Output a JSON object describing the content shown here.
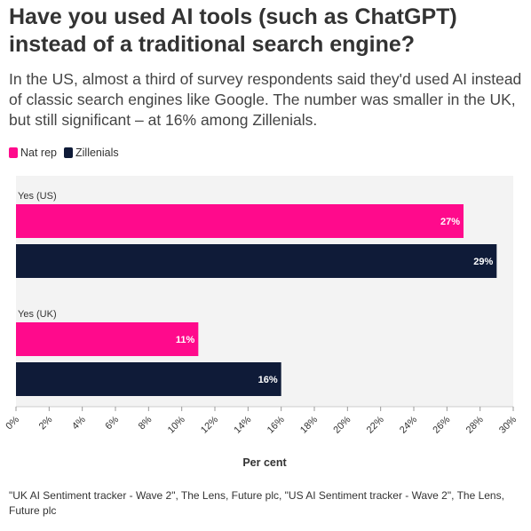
{
  "title": "Have you used AI tools (such as ChatGPT) instead of a traditional search engine?",
  "subtitle": "In the US, almost a third of survey respondents said they'd used AI instead of classic search engines like Google. The number was smaller in the UK, but still significant – at 16% among Zillenials.",
  "legend": [
    {
      "name": "Nat rep",
      "color": "#ff0a8c"
    },
    {
      "name": "Zillenials",
      "color": "#0f1b38"
    }
  ],
  "source": "\"UK AI Sentiment tracker - Wave 2\", The Lens, Future plc, \"US AI Sentiment tracker - Wave 2\", The Lens, Future plc",
  "chart_data": {
    "type": "bar",
    "orientation": "horizontal",
    "categories": [
      "Yes (US)",
      "Yes (UK)"
    ],
    "series": [
      {
        "name": "Nat rep",
        "color": "#ff0a8c",
        "values": [
          27,
          11
        ],
        "labels": [
          "27%",
          "11%"
        ]
      },
      {
        "name": "Zillenials",
        "color": "#0f1b38",
        "values": [
          29,
          16
        ],
        "labels": [
          "29%",
          "16%"
        ]
      }
    ],
    "xlabel": "Per cent",
    "xlim": [
      0,
      30
    ],
    "xticks": [
      "0%",
      "2%",
      "4%",
      "6%",
      "8%",
      "10%",
      "12%",
      "14%",
      "16%",
      "18%",
      "20%",
      "22%",
      "24%",
      "26%",
      "28%",
      "30%"
    ],
    "legend_position": "top-left",
    "grid": false
  }
}
